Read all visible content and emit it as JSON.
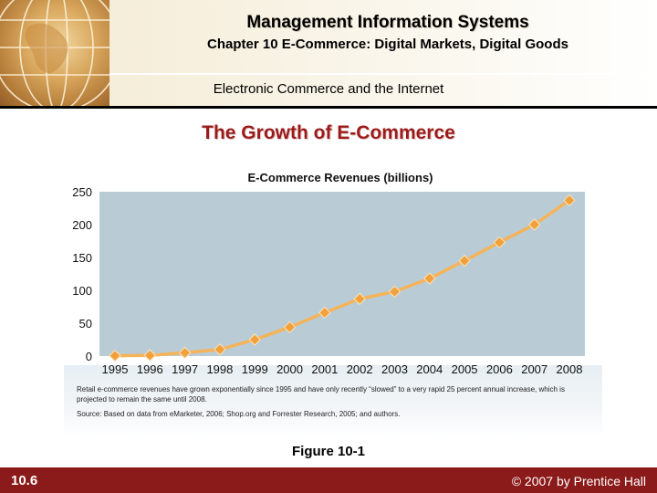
{
  "header": {
    "course_title": "Management Information Systems",
    "chapter_title": "Chapter 10 E-Commerce: Digital Markets, Digital Goods",
    "section_title": "Electronic Commerce and the Internet"
  },
  "slide": {
    "title": "The Growth of E-Commerce"
  },
  "chart_data": {
    "type": "line",
    "title": "E-Commerce Revenues (billions)",
    "xlabel": "",
    "ylabel": "",
    "categories": [
      "1995",
      "1996",
      "1997",
      "1998",
      "1999",
      "2000",
      "2001",
      "2002",
      "2003",
      "2004",
      "2005",
      "2006",
      "2007",
      "2008"
    ],
    "series": [
      {
        "values": [
          0.5,
          1,
          5,
          10,
          25,
          44,
          66,
          87,
          98,
          118,
          145,
          173,
          200,
          237
        ]
      }
    ],
    "ylim": [
      0,
      250
    ],
    "yticks": [
      "0",
      "50",
      "100",
      "150",
      "200",
      "250"
    ],
    "grid": false,
    "legend": "none",
    "colors": {
      "line": "#f5b35a",
      "marker": "#f1a03c",
      "plot_bg": "#b9ccd6"
    }
  },
  "figure": {
    "caption": "Retail e-commerce revenues have grown exponentially since 1995 and have only recently “slowed” to a very rapid 25 percent annual increase, which is projected to remain the same until 2008.",
    "source": "Source: Based on data from eMarketer, 2006; Shop.org and Forrester Research, 2005; and authors.",
    "label": "Figure 10-1"
  },
  "footer": {
    "page_number": "10.6",
    "copyright": "© 2007 by Prentice Hall"
  }
}
